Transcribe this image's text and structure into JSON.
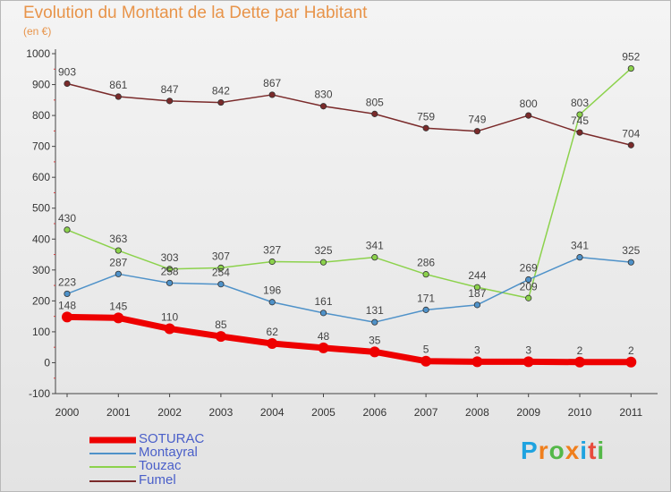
{
  "title": "Evolution du Montant de la Dette par Habitant",
  "subtitle": "(en €)",
  "logo": {
    "text": [
      "P",
      "r",
      "o",
      "x",
      "i",
      "t",
      "i"
    ],
    "colors": [
      "#1fa3e0",
      "#f07f1d",
      "#54b848",
      "#f07f1d",
      "#1fa3e0",
      "#e84b3c",
      "#54b848"
    ]
  },
  "chart_data": {
    "type": "line",
    "x": [
      "2000",
      "2001",
      "2002",
      "2003",
      "2004",
      "2005",
      "2006",
      "2007",
      "2008",
      "2009",
      "2010",
      "2011"
    ],
    "ylim": [
      -100,
      1000
    ],
    "yticks": [
      "-100",
      "0",
      "100",
      "200",
      "300",
      "400",
      "500",
      "600",
      "700",
      "800",
      "900",
      "1000"
    ],
    "grid": false,
    "legend_position": "bottom-left",
    "series": [
      {
        "name": "SOTURAC",
        "color": "#ee0000",
        "values": [
          148,
          145,
          110,
          85,
          62,
          48,
          35,
          5,
          3,
          3,
          2,
          2
        ],
        "labels": [
          "148",
          "145",
          "110",
          "85",
          "62",
          "48",
          "35",
          "5",
          "3",
          "3",
          "2",
          "2"
        ]
      },
      {
        "name": "Montayral",
        "color": "#4f92c9",
        "values": [
          223,
          287,
          258,
          254,
          196,
          161,
          131,
          171,
          187,
          269,
          341,
          325
        ],
        "labels": [
          "223",
          "287",
          "258",
          "254",
          "196",
          "161",
          "131",
          "171",
          "187",
          "269",
          "341",
          "325"
        ]
      },
      {
        "name": "Touzac",
        "color": "#8cd24c",
        "values": [
          430,
          363,
          303,
          307,
          327,
          325,
          341,
          286,
          244,
          209,
          803,
          952
        ],
        "labels": [
          "430",
          "363",
          "303",
          "307",
          "327",
          "325",
          "341",
          "286",
          "244",
          "209",
          "803",
          "952"
        ]
      },
      {
        "name": "Fumel",
        "color": "#7a2a2a",
        "values": [
          903,
          861,
          847,
          842,
          867,
          830,
          805,
          759,
          749,
          800,
          745,
          704
        ],
        "labels": [
          "903",
          "861",
          "847",
          "842",
          "867",
          "830",
          "805",
          "759",
          "749",
          "800",
          "745",
          "704"
        ]
      }
    ]
  }
}
